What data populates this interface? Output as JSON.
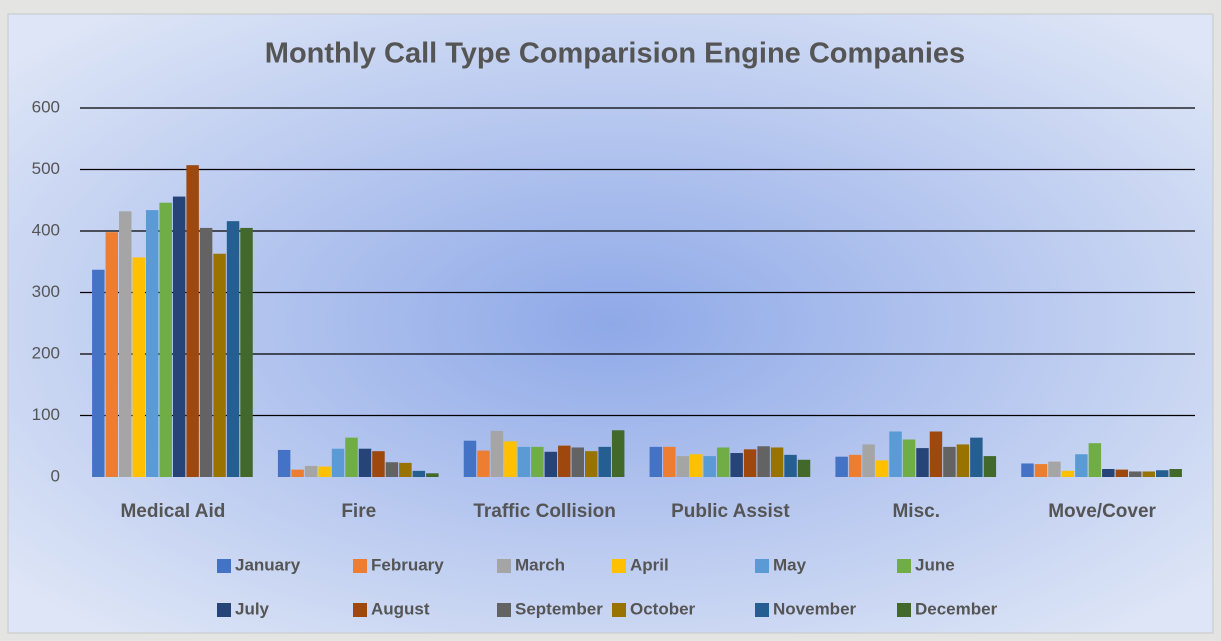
{
  "chart_data": {
    "type": "bar",
    "title": "Monthly Call Type Comparision Engine Companies",
    "categories": [
      "Medical Aid",
      "Fire",
      "Traffic Collision",
      "Public Assist",
      "Misc.",
      "Move/Cover"
    ],
    "series": [
      {
        "name": "January",
        "color": "#4472c4",
        "values": [
          337,
          44,
          59,
          49,
          33,
          22
        ]
      },
      {
        "name": "February",
        "color": "#ed7d31",
        "values": [
          398,
          12,
          43,
          49,
          36,
          21
        ]
      },
      {
        "name": "March",
        "color": "#a5a5a5",
        "values": [
          432,
          18,
          75,
          34,
          53,
          25
        ]
      },
      {
        "name": "April",
        "color": "#ffc000",
        "values": [
          357,
          17,
          58,
          37,
          27,
          10
        ]
      },
      {
        "name": "May",
        "color": "#5b9bd5",
        "values": [
          434,
          46,
          49,
          34,
          74,
          37
        ]
      },
      {
        "name": "June",
        "color": "#70ad47",
        "values": [
          446,
          64,
          49,
          48,
          61,
          55
        ]
      },
      {
        "name": "July",
        "color": "#264478",
        "values": [
          456,
          46,
          41,
          39,
          47,
          13
        ]
      },
      {
        "name": "August",
        "color": "#9e480e",
        "values": [
          507,
          42,
          51,
          45,
          74,
          12
        ]
      },
      {
        "name": "September",
        "color": "#636363",
        "values": [
          405,
          24,
          48,
          50,
          49,
          9
        ]
      },
      {
        "name": "October",
        "color": "#997300",
        "values": [
          363,
          23,
          42,
          48,
          53,
          9
        ]
      },
      {
        "name": "November",
        "color": "#255e91",
        "values": [
          416,
          10,
          49,
          36,
          64,
          11
        ]
      },
      {
        "name": "December",
        "color": "#43682b",
        "values": [
          405,
          6,
          76,
          28,
          34,
          13
        ]
      }
    ],
    "ylim": [
      0,
      600
    ],
    "yticks": [
      0,
      100,
      200,
      300,
      400,
      500,
      600
    ],
    "grid": true,
    "legend": "bottom"
  }
}
